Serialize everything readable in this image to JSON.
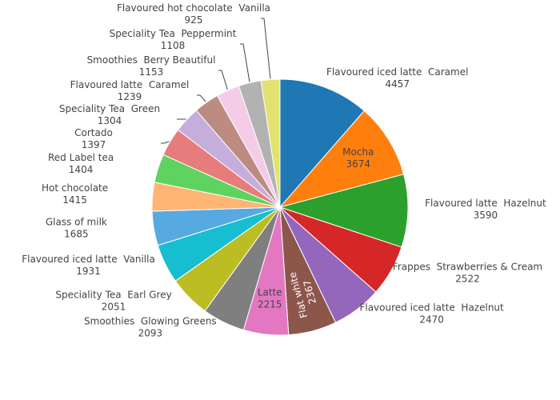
{
  "chart_data": {
    "type": "pie",
    "title": "",
    "direction": "clockwise",
    "start": "top",
    "slices": [
      {
        "line1": "Flavoured iced latte  Caramel",
        "line2": "4457",
        "value": 4457,
        "color": "#1f77b4",
        "label_position": "outside"
      },
      {
        "line1": "Mocha",
        "line2": "3674",
        "value": 3674,
        "color": "#ff7f0e",
        "label_position": "inside"
      },
      {
        "line1": "Flavoured latte  Hazelnut",
        "line2": "3590",
        "value": 3590,
        "color": "#2ca02c",
        "label_position": "outside"
      },
      {
        "line1": "Frappes  Strawberries & Cream",
        "line2": "2522",
        "value": 2522,
        "color": "#d62728",
        "label_position": "outside"
      },
      {
        "line1": "Flavoured iced latte  Hazelnut",
        "line2": "2470",
        "value": 2470,
        "color": "#9467bd",
        "label_position": "outside"
      },
      {
        "line1": "Flat white",
        "line2": "2367",
        "value": 2367,
        "color": "#8c564b",
        "label_position": "inside-rotated"
      },
      {
        "line1": "Latte",
        "line2": "2215",
        "value": 2215,
        "color": "#e377c2",
        "label_position": "inside"
      },
      {
        "line1": "Smoothies  Glowing Greens",
        "line2": "2093",
        "value": 2093,
        "color": "#7f7f7f",
        "label_position": "outside"
      },
      {
        "line1": "Speciality Tea  Earl Grey",
        "line2": "2051",
        "value": 2051,
        "color": "#bcbd22",
        "label_position": "outside"
      },
      {
        "line1": "Flavoured iced latte  Vanilla",
        "line2": "1931",
        "value": 1931,
        "color": "#17becf",
        "label_position": "outside"
      },
      {
        "line1": "Glass of milk",
        "line2": "1685",
        "value": 1685,
        "color": "#57a9e2",
        "label_position": "outside"
      },
      {
        "line1": "Hot chocolate",
        "line2": "1415",
        "value": 1415,
        "color": "#ffb574",
        "label_position": "outside"
      },
      {
        "line1": "Red Label tea",
        "line2": "1404",
        "value": 1404,
        "color": "#5fd35f",
        "label_position": "outside"
      },
      {
        "line1": "Cortado",
        "line2": "1397",
        "value": 1397,
        "color": "#e77c7c",
        "label_position": "outside"
      },
      {
        "line1": "Speciality Tea  Green",
        "line2": "1304",
        "value": 1304,
        "color": "#c6aedc",
        "label_position": "outside"
      },
      {
        "line1": "Flavoured latte  Caramel",
        "line2": "1239",
        "value": 1239,
        "color": "#bc8b81",
        "label_position": "outside"
      },
      {
        "line1": "Smoothies  Berry Beautiful",
        "line2": "1153",
        "value": 1153,
        "color": "#f4cce8",
        "label_position": "outside"
      },
      {
        "line1": "Speciality Tea  Peppermint",
        "line2": "1108",
        "value": 1108,
        "color": "#b2b2b2",
        "label_position": "outside"
      },
      {
        "line1": "Flavoured hot chocolate  Vanilla",
        "line2": "925",
        "value": 925,
        "color": "#e2e270",
        "label_position": "outside"
      }
    ]
  }
}
